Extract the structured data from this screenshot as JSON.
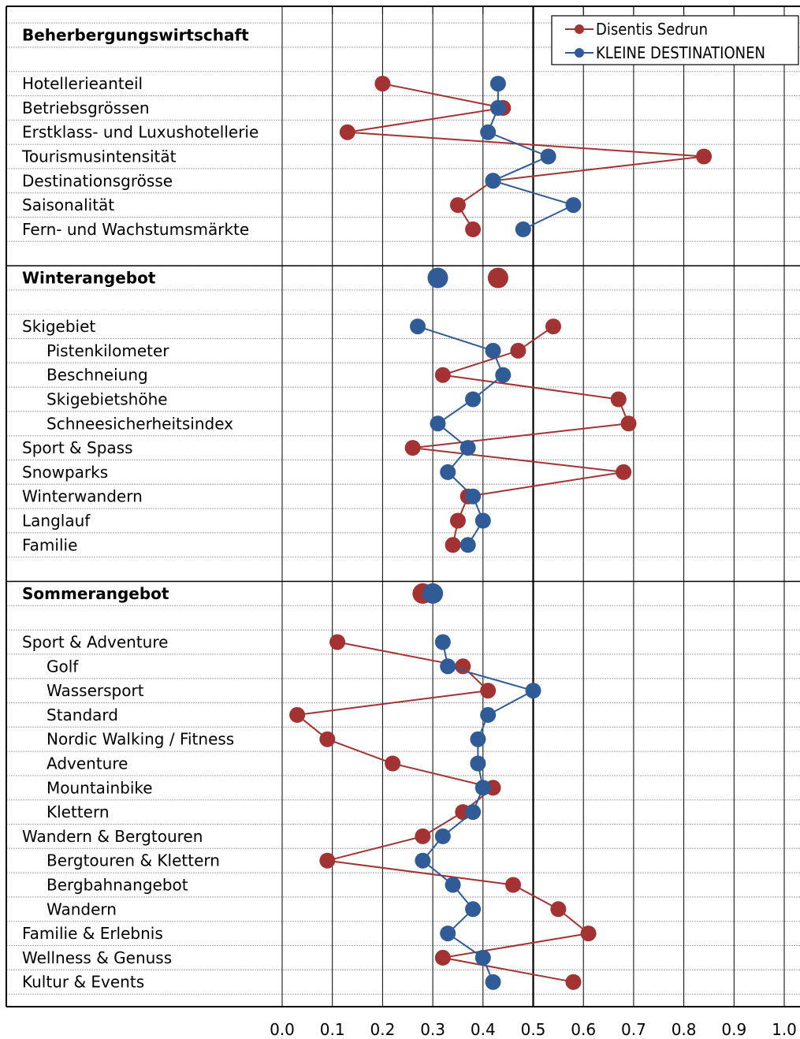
{
  "chart_data": {
    "type": "line",
    "orientation": "horizontal-profile",
    "xlim": [
      0.0,
      1.0
    ],
    "xticks": [
      "0.0",
      "0.1",
      "0.2",
      "0.3",
      "0.4",
      "0.5",
      "0.6",
      "0.7",
      "0.8",
      "0.9",
      "1.0"
    ],
    "reference_line_x": 0.5,
    "grid": true,
    "legend_position": "top-right",
    "categories": [
      {
        "label": "Beherbergungswirtschaft",
        "section": true,
        "indent": 0
      },
      {
        "label": "",
        "spacer": true
      },
      {
        "label": "Hotellerieanteil",
        "indent": 0
      },
      {
        "label": "Betriebsgrössen",
        "indent": 0
      },
      {
        "label": "Erstklass- und Luxushotellerie",
        "indent": 0
      },
      {
        "label": "Tourismusintensität",
        "indent": 0
      },
      {
        "label": "Destinationsgrösse",
        "indent": 0
      },
      {
        "label": "Saisonalität",
        "indent": 0
      },
      {
        "label": "Fern- und Wachstumsmärkte",
        "indent": 0
      },
      {
        "label": "",
        "spacer": true
      },
      {
        "label": "Winterangebot",
        "section": true,
        "indent": 0
      },
      {
        "label": "",
        "spacer": true
      },
      {
        "label": "Skigebiet",
        "indent": 0
      },
      {
        "label": "Pistenkilometer",
        "indent": 1
      },
      {
        "label": "Beschneiung",
        "indent": 1
      },
      {
        "label": "Skigebietshöhe",
        "indent": 1
      },
      {
        "label": "Schneesicherheitsindex",
        "indent": 1
      },
      {
        "label": "Sport & Spass",
        "indent": 0
      },
      {
        "label": "Snowparks",
        "indent": 0
      },
      {
        "label": "Winterwandern",
        "indent": 0
      },
      {
        "label": "Langlauf",
        "indent": 0
      },
      {
        "label": "Familie",
        "indent": 0
      },
      {
        "label": "",
        "spacer": true
      },
      {
        "label": "Sommerangebot",
        "section": true,
        "indent": 0
      },
      {
        "label": "",
        "spacer": true
      },
      {
        "label": "Sport & Adventure",
        "indent": 0
      },
      {
        "label": "Golf",
        "indent": 1
      },
      {
        "label": "Wassersport",
        "indent": 1
      },
      {
        "label": "Standard",
        "indent": 1
      },
      {
        "label": "Nordic Walking / Fitness",
        "indent": 1
      },
      {
        "label": "Adventure",
        "indent": 1
      },
      {
        "label": "Mountainbike",
        "indent": 1
      },
      {
        "label": "Klettern",
        "indent": 1
      },
      {
        "label": "Wandern & Bergtouren",
        "indent": 0
      },
      {
        "label": "Bergtouren & Klettern",
        "indent": 1
      },
      {
        "label": "Bergbahnangebot",
        "indent": 1
      },
      {
        "label": "Wandern",
        "indent": 1
      },
      {
        "label": "Familie & Erlebnis",
        "indent": 0
      },
      {
        "label": "Wellness & Genuss",
        "indent": 0
      },
      {
        "label": "Kultur & Events",
        "indent": 0
      }
    ],
    "section_dividers_after_rows": [
      9,
      22
    ],
    "series": [
      {
        "name": "Disentis Sedrun",
        "color": "#a33333",
        "segments": [
          {
            "rows": [
              2,
              3,
              4,
              5,
              6,
              7,
              8
            ],
            "values": [
              0.2,
              0.44,
              0.13,
              0.84,
              0.42,
              0.35,
              0.38
            ]
          },
          {
            "rows": [
              12,
              13,
              14,
              15,
              16,
              17,
              18,
              19,
              20,
              21
            ],
            "values": [
              0.54,
              0.47,
              0.32,
              0.67,
              0.69,
              0.26,
              0.68,
              0.37,
              0.35,
              0.34
            ]
          },
          {
            "rows": [
              25,
              26,
              27,
              28,
              29,
              30,
              31,
              32,
              33,
              34,
              35,
              36,
              37,
              38,
              39
            ],
            "values": [
              0.11,
              0.36,
              0.41,
              0.03,
              0.09,
              0.22,
              0.42,
              0.36,
              0.28,
              0.09,
              0.46,
              0.55,
              0.61,
              0.32,
              0.58
            ]
          }
        ],
        "section_values": [
          {
            "row": 10,
            "value": 0.43
          },
          {
            "row": 23,
            "value": 0.28
          }
        ]
      },
      {
        "name": "KLEINE DESTINATIONEN",
        "color": "#2f5b96",
        "segments": [
          {
            "rows": [
              2,
              3,
              4,
              5,
              6,
              7,
              8
            ],
            "values": [
              0.43,
              0.43,
              0.41,
              0.53,
              0.42,
              0.58,
              0.48
            ]
          },
          {
            "rows": [
              12,
              13,
              14,
              15,
              16,
              17,
              18,
              19,
              20,
              21
            ],
            "values": [
              0.27,
              0.42,
              0.44,
              0.38,
              0.31,
              0.37,
              0.33,
              0.38,
              0.4,
              0.37
            ]
          },
          {
            "rows": [
              25,
              26,
              27,
              28,
              29,
              30,
              31,
              32,
              33,
              34,
              35,
              36,
              37,
              38,
              39
            ],
            "values": [
              0.32,
              0.33,
              0.5,
              0.41,
              0.39,
              0.39,
              0.4,
              0.38,
              0.32,
              0.28,
              0.34,
              0.38,
              0.33,
              0.4,
              0.42
            ]
          }
        ],
        "section_values": [
          {
            "row": 10,
            "value": 0.31
          },
          {
            "row": 23,
            "value": 0.3
          }
        ]
      }
    ]
  }
}
